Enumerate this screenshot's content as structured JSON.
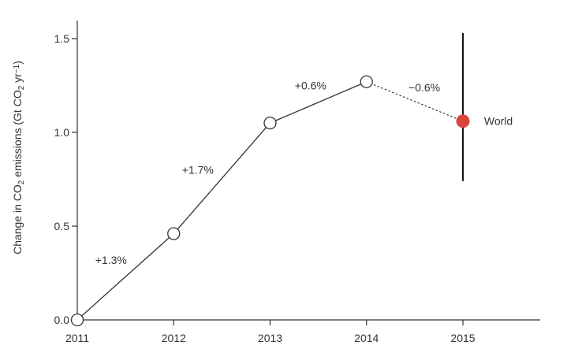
{
  "chart_data": {
    "type": "line",
    "title": "",
    "xlabel": "",
    "ylabel_parts": [
      "Change in CO",
      "2",
      " emissions (Gt CO",
      "2",
      " yr",
      "−1",
      ")"
    ],
    "xlim": [
      2011,
      2015
    ],
    "ylim": [
      0,
      1.5
    ],
    "x_ticks": [
      "2011",
      "2012",
      "2013",
      "2014",
      "2015"
    ],
    "y_ticks": [
      "0.0",
      "0.5",
      "1.0",
      "1.5"
    ],
    "grid": false,
    "series": [
      {
        "x": [
          2011,
          2012,
          2013,
          2014
        ],
        "y": [
          0.0,
          0.46,
          1.05,
          1.27
        ],
        "marker": "open-circle",
        "line": "solid"
      },
      {
        "x": [
          2014,
          2015
        ],
        "y": [
          1.27,
          1.06
        ],
        "marker": "none",
        "line": "dotted"
      },
      {
        "name": "World",
        "x": [
          2015
        ],
        "y": [
          1.06
        ],
        "error_low": [
          0.74
        ],
        "error_high": [
          1.53
        ],
        "marker": "filled-circle",
        "color": "#d9453b"
      }
    ],
    "annotations": [
      {
        "text": "+1.3%",
        "x": 2011.35,
        "y": 0.32
      },
      {
        "text": "+1.7%",
        "x": 2012.25,
        "y": 0.8
      },
      {
        "text": "+0.6%",
        "x": 2013.42,
        "y": 1.25
      },
      {
        "text": "−0.6%",
        "x": 2014.6,
        "y": 1.24
      },
      {
        "text": "World",
        "x": 2015.22,
        "y": 1.06
      }
    ],
    "colors": {
      "axis": "#333333",
      "line": "#333333",
      "marker_fill": "#ffffff",
      "world": "#d9453b"
    }
  }
}
